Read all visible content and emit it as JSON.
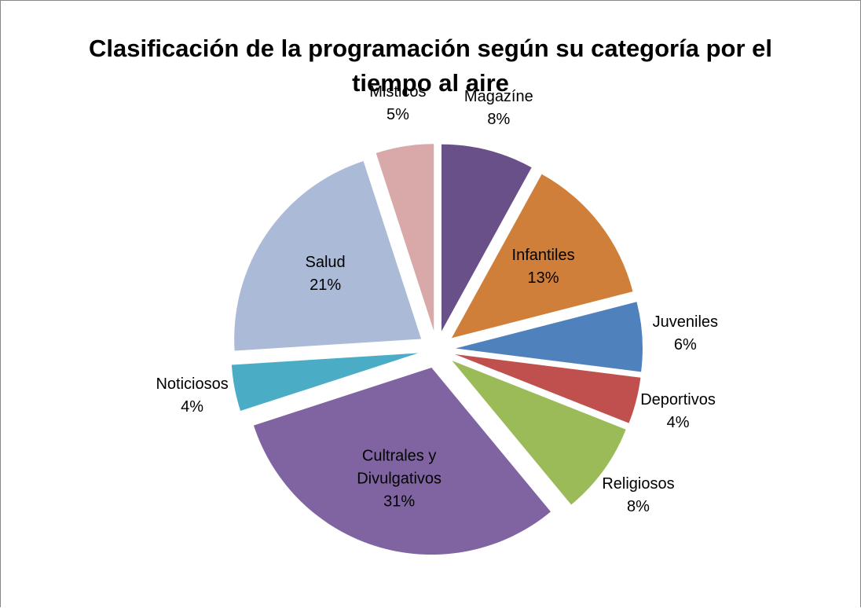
{
  "chart_data": {
    "type": "pie",
    "title": "Clasificación de la programación según su categoría por el tiempo al aire",
    "categories": [
      "Magazíne",
      "Infantiles",
      "Juveniles",
      "Deportivos",
      "Religiosos",
      "Cultrales y Divulgativos",
      "Noticiosos",
      "Salud",
      "Misticos"
    ],
    "values": [
      8,
      13,
      6,
      4,
      8,
      31,
      4,
      21,
      5
    ],
    "value_labels": [
      "8%",
      "13%",
      "6%",
      "4%",
      "8%",
      "31%",
      "4%",
      "21%",
      "5%"
    ],
    "colors": [
      "#6a5088",
      "#d07f3a",
      "#4f81bd",
      "#c0504d",
      "#9bbb59",
      "#8064a2",
      "#4bacc6",
      "#aabad7",
      "#d9a9a9"
    ]
  }
}
